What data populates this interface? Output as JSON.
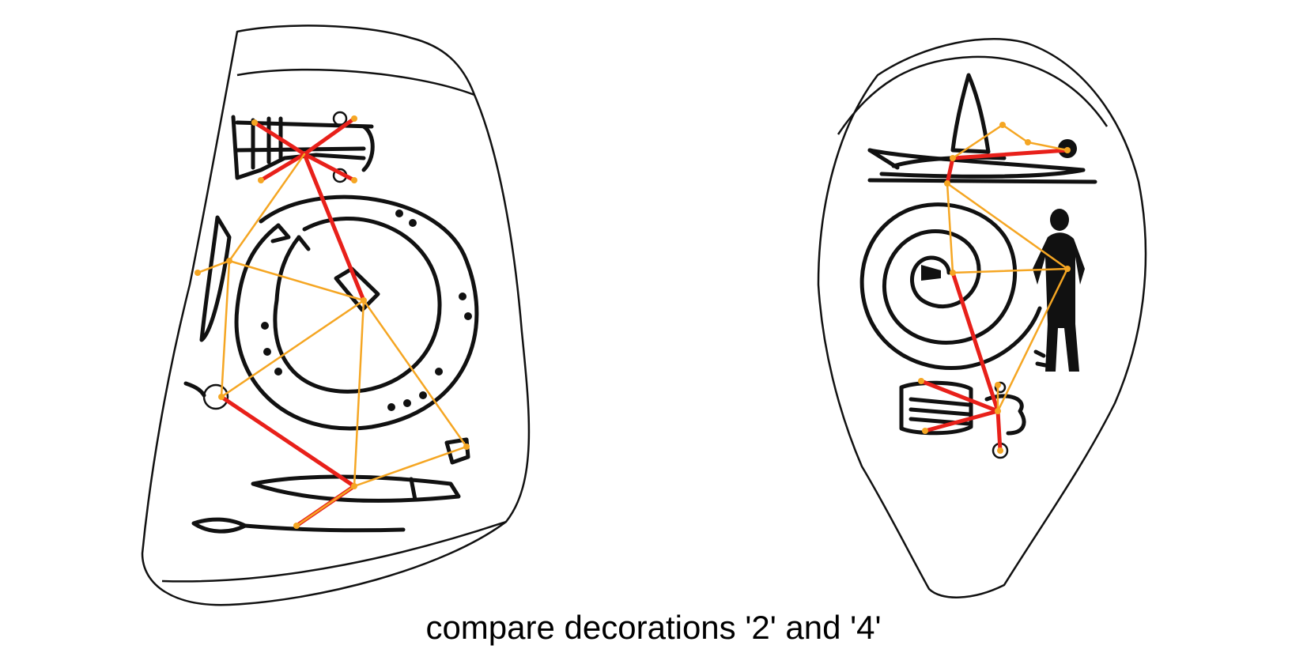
{
  "caption": "compare decorations '2' and '4'",
  "colors": {
    "ink": "#111111",
    "red_connector": "#e8201a",
    "orange_connector": "#f5a623",
    "background": "#ffffff"
  },
  "figures": [
    {
      "name": "stone-2",
      "icons": [
        "ship-icon",
        "concentric-circle-icon",
        "knife-icon",
        "spearhead-icon"
      ]
    },
    {
      "name": "stone-4",
      "icons": [
        "sailboat-icon",
        "spiral-icon",
        "human-figure-icon",
        "bag-icon"
      ]
    }
  ]
}
